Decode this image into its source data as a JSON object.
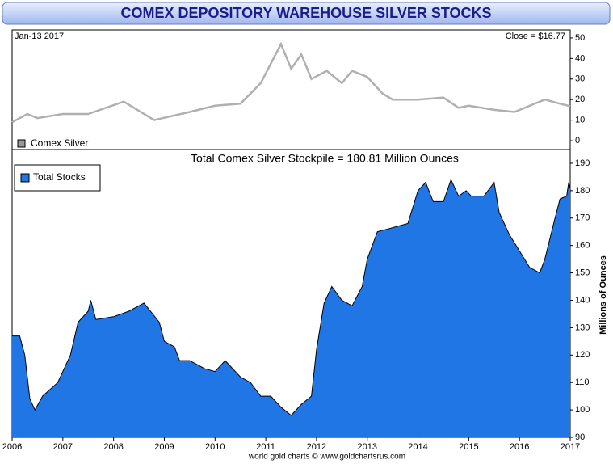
{
  "title": "COMEX DEPOSITORY WAREHOUSE SILVER STOCKS",
  "footer": "world gold charts © www.goldchartsrus.com",
  "chart_data": [
    {
      "type": "line",
      "date_label": "Jan-13 2017",
      "close_label": "Close = $16.77",
      "series": [
        {
          "name": "Comex Silver",
          "color": "#b0b0b0",
          "x": [
            2006.0,
            2006.3,
            2006.5,
            2007.0,
            2007.5,
            2008.2,
            2008.8,
            2009.5,
            2010.0,
            2010.5,
            2010.9,
            2011.3,
            2011.5,
            2011.7,
            2011.9,
            2012.2,
            2012.5,
            2012.7,
            2013.0,
            2013.3,
            2013.5,
            2014.0,
            2014.5,
            2014.8,
            2015.0,
            2015.5,
            2015.9,
            2016.5,
            2016.8,
            2017.0
          ],
          "values": [
            9,
            13,
            11,
            13,
            13,
            19,
            10,
            14,
            17,
            18,
            28,
            47,
            35,
            42,
            30,
            34,
            28,
            34,
            31,
            23,
            20,
            20,
            21,
            16,
            17,
            15,
            14,
            20,
            18,
            16.77
          ]
        }
      ],
      "xlim": [
        2006,
        2017
      ],
      "ylim": [
        -4.3,
        53.9
      ],
      "yticks": [
        0,
        10,
        20,
        30,
        40,
        50
      ]
    },
    {
      "type": "area",
      "annotation": "Total Comex Silver Stockpile = 180.81 Million Ounces",
      "y_label": "Millions of Ounces",
      "series": [
        {
          "name": "Total Stocks",
          "color": "#2176e5",
          "x": [
            2006.0,
            2006.15,
            2006.25,
            2006.35,
            2006.45,
            2006.6,
            2006.9,
            2007.15,
            2007.3,
            2007.5,
            2007.55,
            2007.65,
            2008.0,
            2008.3,
            2008.6,
            2008.9,
            2009.0,
            2009.2,
            2009.3,
            2009.5,
            2009.8,
            2010.0,
            2010.2,
            2010.5,
            2010.7,
            2010.9,
            2011.1,
            2011.3,
            2011.5,
            2011.7,
            2011.9,
            2012.0,
            2012.15,
            2012.3,
            2012.5,
            2012.7,
            2012.9,
            2013.0,
            2013.2,
            2013.4,
            2013.6,
            2013.8,
            2014.0,
            2014.15,
            2014.3,
            2014.5,
            2014.65,
            2014.8,
            2014.95,
            2015.05,
            2015.3,
            2015.5,
            2015.6,
            2015.8,
            2016.0,
            2016.2,
            2016.4,
            2016.5,
            2016.7,
            2016.8,
            2016.93,
            2016.97,
            2017.0
          ],
          "values": [
            127,
            127,
            120,
            104,
            100,
            105,
            110,
            120,
            132,
            136,
            140,
            133,
            134,
            136,
            139,
            132,
            125,
            123,
            118,
            118,
            115,
            114,
            118,
            112,
            110,
            105,
            105,
            101,
            98,
            102,
            105,
            122,
            139,
            145,
            140,
            138,
            145,
            155,
            165,
            166,
            167,
            168,
            180,
            183,
            176,
            176,
            184,
            178,
            180,
            178,
            178,
            183,
            172,
            164,
            158,
            152,
            150,
            155,
            170,
            177,
            178,
            183,
            180.81
          ]
        }
      ],
      "xlim": [
        2006,
        2017
      ],
      "xticks": [
        2006,
        2007,
        2008,
        2009,
        2010,
        2011,
        2012,
        2013,
        2014,
        2015,
        2016,
        2017
      ],
      "ylim": [
        90,
        195
      ],
      "yticks": [
        90,
        100,
        110,
        120,
        130,
        140,
        150,
        160,
        170,
        180,
        190
      ]
    }
  ]
}
